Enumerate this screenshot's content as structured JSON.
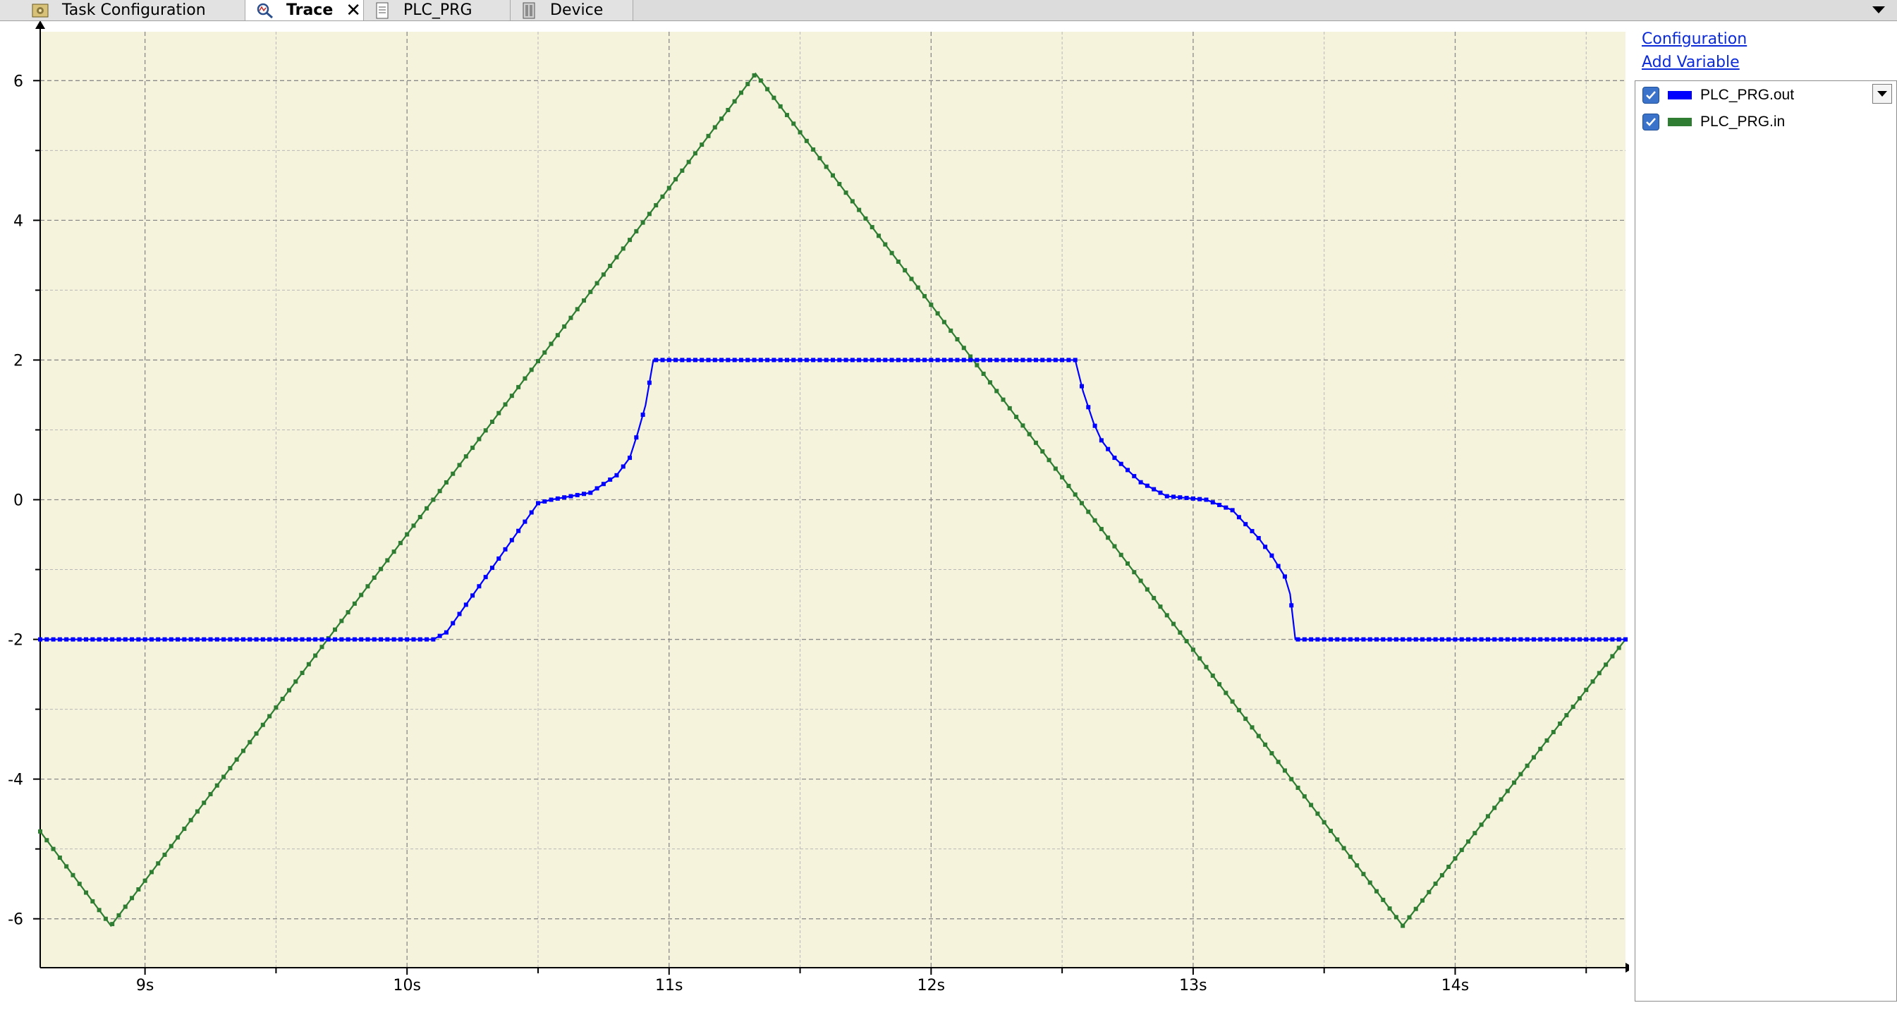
{
  "tabs": [
    {
      "label": "Task Configuration",
      "icon": "task-config-icon",
      "active": false
    },
    {
      "label": "Trace",
      "icon": "trace-icon",
      "active": true
    },
    {
      "label": "PLC_PRG",
      "icon": "document-icon",
      "active": false
    },
    {
      "label": "Device",
      "icon": "device-icon",
      "active": false
    }
  ],
  "side_panel": {
    "configuration_link": "Configuration",
    "add_variable_link": "Add Variable",
    "variables": [
      {
        "label": "PLC_PRG.out",
        "checked": true,
        "color": "#0000ff"
      },
      {
        "label": "PLC_PRG.in",
        "checked": true,
        "color": "#2e7d32"
      }
    ]
  },
  "colors": {
    "plot_background": "#f5f3dc",
    "out_series": "#0000ff",
    "in_series": "#2e7d32",
    "grid": "#8a8a8a"
  },
  "chart_data": {
    "type": "line",
    "title": "",
    "xlabel": "",
    "ylabel": "",
    "xlim": [
      8.6,
      14.65
    ],
    "ylim": [
      -6.7,
      6.7
    ],
    "x_ticks": [
      9,
      10,
      11,
      12,
      13,
      14
    ],
    "x_tick_labels": [
      "9s",
      "10s",
      "11s",
      "12s",
      "13s",
      "14s"
    ],
    "y_ticks": [
      -6,
      -4,
      -2,
      0,
      2,
      4,
      6
    ],
    "y_tick_labels": [
      "-6",
      "-4",
      "-2",
      "0",
      "2",
      "4",
      "6"
    ],
    "grid": true,
    "series": [
      {
        "name": "PLC_PRG.in",
        "color": "#2e7d32",
        "x": [
          8.6,
          8.87,
          11.33,
          13.8,
          14.65
        ],
        "y": [
          -4.75,
          -6.1,
          6.1,
          -6.1,
          -2.0
        ]
      },
      {
        "name": "PLC_PRG.out",
        "color": "#0000ff",
        "x": [
          8.6,
          10.1,
          10.15,
          10.5,
          10.55,
          10.7,
          10.8,
          10.85,
          10.88,
          10.91,
          10.94,
          11.0,
          12.55,
          12.58,
          12.62,
          12.65,
          12.7,
          12.8,
          12.9,
          13.05,
          13.15,
          13.25,
          13.3,
          13.35,
          13.37,
          13.39,
          14.65
        ],
        "y": [
          -2.0,
          -2.0,
          -1.9,
          -0.05,
          0.0,
          0.1,
          0.35,
          0.6,
          0.95,
          1.35,
          2.0,
          2.0,
          2.0,
          1.55,
          1.1,
          0.85,
          0.6,
          0.25,
          0.05,
          0.0,
          -0.15,
          -0.55,
          -0.8,
          -1.1,
          -1.35,
          -2.0,
          -2.0
        ]
      }
    ]
  }
}
